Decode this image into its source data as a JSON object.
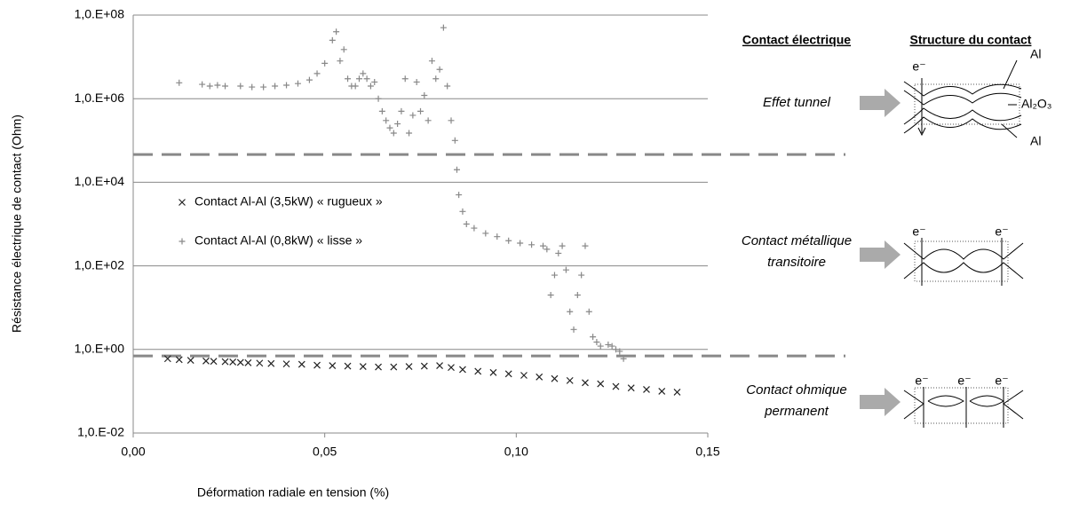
{
  "chart_data": {
    "type": "scatter",
    "ylabel": "Résistance électrique de contact (Ohm)",
    "xlabel": "Déformation radiale en tension (%)",
    "xlim": [
      0,
      0.15
    ],
    "xticks": [
      {
        "value": 0,
        "label": "0,00"
      },
      {
        "value": 0.05,
        "label": "0,05"
      },
      {
        "value": 0.1,
        "label": "0,10"
      },
      {
        "value": 0.15,
        "label": "0,15"
      }
    ],
    "ylim": [
      0.01,
      100000000
    ],
    "yscale": "log",
    "yticks": [
      {
        "value": 0.01,
        "label": "1,0.E-02"
      },
      {
        "value": 1,
        "label": "1,0.E+00"
      },
      {
        "value": 100,
        "label": "1,0.E+02"
      },
      {
        "value": 10000,
        "label": "1,0.E+04"
      },
      {
        "value": 1000000,
        "label": "1,0.E+06"
      },
      {
        "value": 100000000,
        "label": "1,0.E+08"
      }
    ],
    "grid": true,
    "thresholds": [
      46000,
      0.7
    ],
    "series": [
      {
        "name": "Contact Al-Al (3,5kW) « rugueux »",
        "marker": "x",
        "color": "#222222",
        "x": [
          0.009,
          0.012,
          0.015,
          0.019,
          0.021,
          0.024,
          0.026,
          0.028,
          0.03,
          0.033,
          0.036,
          0.04,
          0.044,
          0.048,
          0.052,
          0.056,
          0.06,
          0.064,
          0.068,
          0.072,
          0.076,
          0.08,
          0.083,
          0.086,
          0.09,
          0.094,
          0.098,
          0.102,
          0.106,
          0.11,
          0.114,
          0.118,
          0.122,
          0.126,
          0.13,
          0.134,
          0.138,
          0.142
        ],
        "values": [
          0.6,
          0.57,
          0.55,
          0.53,
          0.52,
          0.51,
          0.5,
          0.49,
          0.48,
          0.47,
          0.46,
          0.45,
          0.44,
          0.42,
          0.41,
          0.4,
          0.39,
          0.38,
          0.38,
          0.39,
          0.4,
          0.41,
          0.37,
          0.33,
          0.3,
          0.28,
          0.26,
          0.24,
          0.22,
          0.2,
          0.18,
          0.16,
          0.15,
          0.13,
          0.12,
          0.11,
          0.1,
          0.095
        ]
      },
      {
        "name": "Contact Al-Al (0,8kW) « lisse »",
        "marker": "+",
        "color": "#888888",
        "x": [
          0.012,
          0.018,
          0.02,
          0.022,
          0.024,
          0.028,
          0.031,
          0.034,
          0.037,
          0.04,
          0.043,
          0.046,
          0.048,
          0.05,
          0.052,
          0.053,
          0.054,
          0.055,
          0.056,
          0.057,
          0.058,
          0.059,
          0.06,
          0.061,
          0.062,
          0.063,
          0.064,
          0.065,
          0.066,
          0.067,
          0.068,
          0.069,
          0.07,
          0.071,
          0.072,
          0.073,
          0.074,
          0.075,
          0.076,
          0.077,
          0.078,
          0.079,
          0.08,
          0.081,
          0.082,
          0.083,
          0.084,
          0.0845,
          0.085,
          0.086,
          0.087,
          0.089,
          0.092,
          0.095,
          0.098,
          0.101,
          0.104,
          0.107,
          0.108,
          0.109,
          0.11,
          0.111,
          0.112,
          0.113,
          0.114,
          0.115,
          0.116,
          0.117,
          0.118,
          0.119,
          0.12,
          0.121,
          0.122,
          0.124,
          0.125,
          0.126,
          0.127,
          0.128
        ],
        "values": [
          2400000,
          2200000,
          2000000,
          2100000,
          2000000,
          2000000,
          1900000,
          1900000,
          2000000,
          2100000,
          2300000,
          2800000,
          4000000,
          7000000,
          25000000,
          40000000,
          8000000,
          15000000,
          3000000,
          2000000,
          2000000,
          3000000,
          4000000,
          3000000,
          2000000,
          2500000,
          1000000,
          500000,
          300000,
          200000,
          150000,
          250000,
          500000,
          3000000,
          150000,
          400000,
          2500000,
          500000,
          1200000,
          300000,
          8000000,
          3000000,
          5000000,
          50000000,
          2000000,
          300000,
          100000,
          20000,
          5000,
          2000,
          1000,
          800,
          600,
          500,
          400,
          350,
          320,
          300,
          250,
          20,
          60,
          200,
          300,
          80,
          8,
          3,
          20,
          60,
          300,
          8,
          2,
          1.5,
          1.2,
          1.3,
          1.2,
          1,
          0.9,
          0.6
        ]
      }
    ]
  },
  "regions": {
    "heading": "Contact électrique",
    "labels": [
      [
        "Effet tunnel"
      ],
      [
        "Contact métallique",
        "transitoire"
      ],
      [
        "Contact ohmique",
        "permanent"
      ]
    ]
  },
  "structure": {
    "heading": "Structure du contact",
    "tunnel": {
      "electron": "e⁻",
      "top": "Al",
      "middle": "Al₂O₃",
      "bottom": "Al"
    },
    "transitoire": {
      "electrons": [
        "e⁻",
        "e⁻"
      ]
    },
    "ohmique": {
      "electrons": [
        "e⁻",
        "e⁻",
        "e⁻"
      ]
    }
  }
}
